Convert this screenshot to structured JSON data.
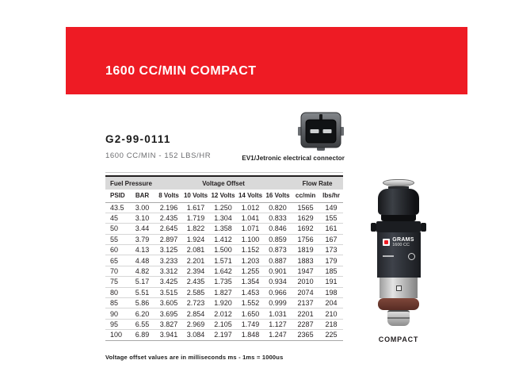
{
  "colors": {
    "banner_red": "#ee1b24",
    "table_header_bg": "#d9d9d9",
    "text_dark": "#231f20",
    "subtitle_gray": "#6d6e71"
  },
  "banner": {
    "title": "1600 CC/MIN COMPACT"
  },
  "product": {
    "part_number": "G2-99-0111",
    "flow_spec": "1600 CC/MIN - 152 LBS/HR",
    "connector_caption": "EV1/Jetronic electrical connector"
  },
  "spec_table": {
    "group_headers": [
      "Fuel Pressure",
      "Voltage Offset",
      "Flow Rate"
    ],
    "columns": [
      "PSID",
      "BAR",
      "8 Volts",
      "10 Volts",
      "12 Volts",
      "14 Volts",
      "16 Volts",
      "cc/min",
      "lbs/hr"
    ],
    "rows": [
      [
        "43.5",
        "3.00",
        "2.196",
        "1.617",
        "1.250",
        "1.012",
        "0.820",
        "1565",
        "149"
      ],
      [
        "45",
        "3.10",
        "2.435",
        "1.719",
        "1.304",
        "1.041",
        "0.833",
        "1629",
        "155"
      ],
      [
        "50",
        "3.44",
        "2.645",
        "1.822",
        "1.358",
        "1.071",
        "0.846",
        "1692",
        "161"
      ],
      [
        "55",
        "3.79",
        "2.897",
        "1.924",
        "1.412",
        "1.100",
        "0.859",
        "1756",
        "167"
      ],
      [
        "60",
        "4.13",
        "3.125",
        "2.081",
        "1.500",
        "1.152",
        "0.873",
        "1819",
        "173"
      ],
      [
        "65",
        "4.48",
        "3.233",
        "2.201",
        "1.571",
        "1.203",
        "0.887",
        "1883",
        "179"
      ],
      [
        "70",
        "4.82",
        "3.312",
        "2.394",
        "1.642",
        "1.255",
        "0.901",
        "1947",
        "185"
      ],
      [
        "75",
        "5.17",
        "3.425",
        "2.435",
        "1.735",
        "1.354",
        "0.934",
        "2010",
        "191"
      ],
      [
        "80",
        "5.51",
        "3.515",
        "2.585",
        "1.827",
        "1.453",
        "0.966",
        "2074",
        "198"
      ],
      [
        "85",
        "5.86",
        "3.605",
        "2.723",
        "1.920",
        "1.552",
        "0.999",
        "2137",
        "204"
      ],
      [
        "90",
        "6.20",
        "3.695",
        "2.854",
        "2.012",
        "1.650",
        "1.031",
        "2201",
        "210"
      ],
      [
        "95",
        "6.55",
        "3.827",
        "2.969",
        "2.105",
        "1.749",
        "1.127",
        "2287",
        "218"
      ],
      [
        "100",
        "6.89",
        "3.941",
        "3.084",
        "2.197",
        "1.848",
        "1.247",
        "2365",
        "225"
      ]
    ]
  },
  "footnote": "Voltage offset values are in milliseconds ms - 1ms = 1000us",
  "injector": {
    "brand": "GRAMS",
    "model": "1600 CC",
    "caption": "COMPACT"
  }
}
